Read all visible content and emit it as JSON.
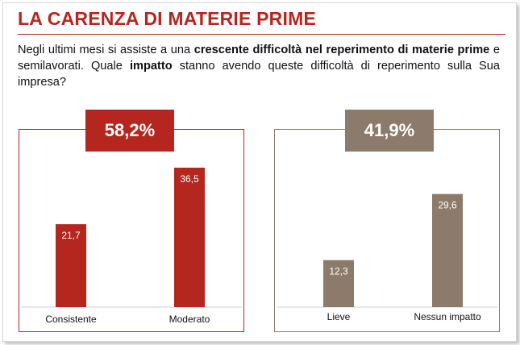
{
  "title": "LA CARENZA DI MATERIE PRIME",
  "question": {
    "line1_pre": "Negli ultimi mesi si assiste a una ",
    "line1_bold": "crescente difficoltà nel reperimento di materie prime",
    "mid": " e semilavorati. Quale ",
    "impact_bold": "impatto",
    "end": " stanno avendo queste difficoltà di reperimento sulla Sua impresa?"
  },
  "colors": {
    "red": "#b5261e",
    "brown": "#8c7b6a"
  },
  "chart_data": [
    {
      "type": "bar",
      "badge": "58,2%",
      "categories": [
        "Consistente",
        "Moderato"
      ],
      "values": [
        21.7,
        36.5
      ],
      "value_labels": [
        "21,7",
        "36,5"
      ],
      "color": "#b5261e",
      "ylim": [
        0,
        40
      ]
    },
    {
      "type": "bar",
      "badge": "41,9%",
      "categories": [
        "Lieve",
        "Nessun impatto"
      ],
      "values": [
        12.3,
        29.6
      ],
      "value_labels": [
        "12,3",
        "29,6"
      ],
      "color": "#8c7b6a",
      "ylim": [
        0,
        40
      ]
    }
  ]
}
